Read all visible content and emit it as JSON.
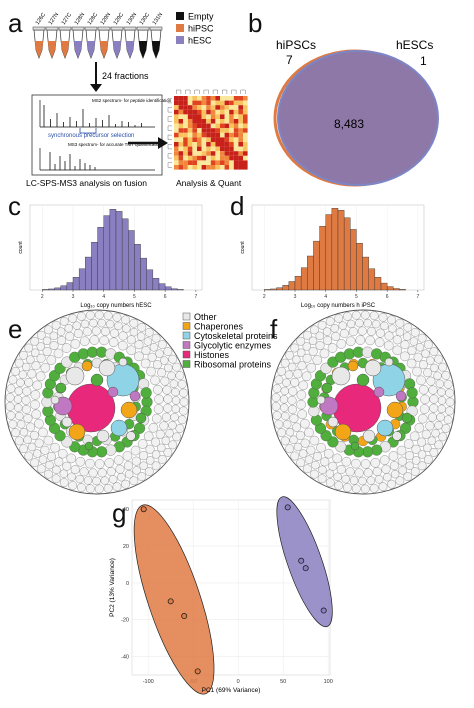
{
  "panels": {
    "a": {
      "letter": "a",
      "tube_labels": [
        "126C",
        "127N",
        "127C",
        "128N",
        "128C",
        "129N",
        "129C",
        "130N",
        "130C",
        "131N"
      ],
      "tube_colors": [
        "#e07a43",
        "#e07a43",
        "#e07a43",
        "#8a7fc1",
        "#8a7fc1",
        "#e07a43",
        "#8a7fc1",
        "#8a7fc1",
        "#111111",
        "#111111"
      ],
      "legend": [
        {
          "label": "Empty",
          "color": "#111111"
        },
        {
          "label": "hiPSC",
          "color": "#e07a43"
        },
        {
          "label": "hESC",
          "color": "#8a7fc1"
        }
      ],
      "fractions_label": "24 fractions",
      "ms2_label": "MS2 spectrum- for peptide identification",
      "sps_label": "synchronous precursor selection",
      "ms3_label": "MS3 spectrum- for accurate TMT quantification",
      "caption_left": "LC-SPS-MS3 analysis on fusion",
      "caption_right": "Analysis & Quant"
    },
    "b": {
      "letter": "b",
      "left_label": "hiPSCs",
      "left_count": "7",
      "right_label": "hESCs",
      "right_count": "1",
      "shared_count": "8,483"
    },
    "c": {
      "letter": "c"
    },
    "d": {
      "letter": "d"
    },
    "e": {
      "letter": "e",
      "legend": [
        {
          "label": "Other",
          "color": "#e8e8e8"
        },
        {
          "label": "Chaperones",
          "color": "#f2a516"
        },
        {
          "label": "Cytoskeletal proteins",
          "color": "#8fd3e6"
        },
        {
          "label": "Glycolytic enzymes",
          "color": "#c078c2"
        },
        {
          "label": "Histones",
          "color": "#e8287a"
        },
        {
          "label": "Ribosomal proteins",
          "color": "#4fae3c"
        }
      ]
    },
    "f": {
      "letter": "f"
    },
    "g": {
      "letter": "g"
    }
  },
  "chart_data": [
    {
      "panel": "c",
      "type": "bar",
      "color": "#8a7fc1",
      "xlabel": "Log₁₀ copy numbers hESC",
      "ylabel": "count",
      "x_ticks": [
        2,
        3,
        4,
        5,
        6,
        7
      ],
      "bin_width": 0.2,
      "x": [
        2.0,
        2.2,
        2.4,
        2.6,
        2.8,
        3.0,
        3.2,
        3.4,
        3.6,
        3.8,
        4.0,
        4.2,
        4.4,
        4.6,
        4.8,
        5.0,
        5.2,
        5.4,
        5.6,
        5.8,
        6.0,
        6.2,
        6.4
      ],
      "values": [
        5,
        10,
        20,
        40,
        70,
        120,
        200,
        310,
        450,
        590,
        700,
        760,
        740,
        670,
        560,
        430,
        300,
        190,
        110,
        60,
        30,
        12,
        5
      ],
      "ylim": [
        0,
        800
      ]
    },
    {
      "panel": "d",
      "type": "bar",
      "color": "#e07a43",
      "xlabel": "Log₁₀ copy numbers h iPSC",
      "ylabel": "count",
      "x_ticks": [
        2,
        3,
        4,
        5,
        6,
        7
      ],
      "bin_width": 0.2,
      "x": [
        2.0,
        2.2,
        2.4,
        2.6,
        2.8,
        3.0,
        3.2,
        3.4,
        3.6,
        3.8,
        4.0,
        4.2,
        4.4,
        4.6,
        4.8,
        5.0,
        5.2,
        5.4,
        5.6,
        5.8,
        6.0,
        6.2,
        6.4
      ],
      "values": [
        5,
        10,
        22,
        45,
        80,
        130,
        210,
        320,
        460,
        600,
        710,
        770,
        750,
        680,
        570,
        440,
        310,
        200,
        120,
        65,
        32,
        14,
        6
      ],
      "ylim": [
        0,
        800
      ]
    },
    {
      "panel": "g",
      "type": "scatter",
      "xlabel": "PC1 (69% Variance)",
      "ylabel": "PC2 (13% Variance)",
      "x_ticks": [
        -100,
        -50,
        0,
        50,
        100
      ],
      "y_ticks": [
        -40,
        -20,
        0,
        20,
        40
      ],
      "xlim": [
        -118,
        102
      ],
      "ylim": [
        -50,
        45
      ],
      "series": [
        {
          "color": "#e07a43",
          "x": [
            -105,
            -75,
            -60,
            -45
          ],
          "y": [
            40,
            -10,
            -18,
            -48
          ]
        },
        {
          "color": "#8a7fc1",
          "x": [
            55,
            70,
            75,
            95
          ],
          "y": [
            41,
            12,
            8,
            -15
          ]
        }
      ]
    }
  ]
}
